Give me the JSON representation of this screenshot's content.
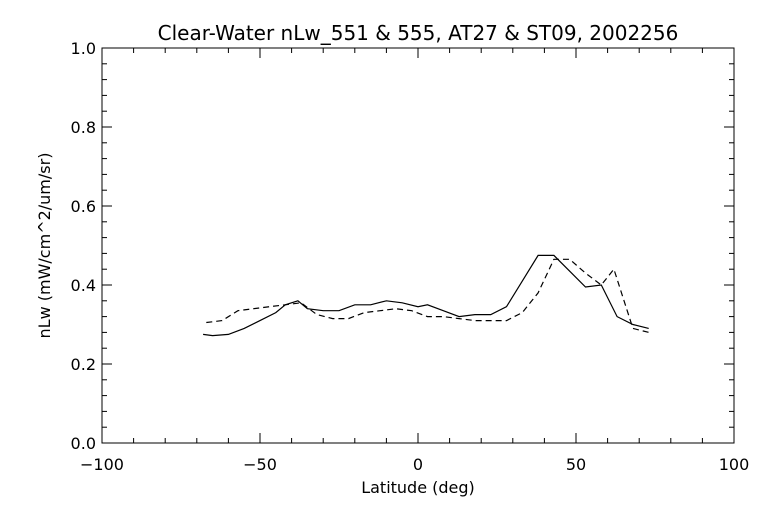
{
  "chart_data": {
    "type": "line",
    "title": "Clear-Water nLw_551 & 555, AT27 & ST09, 2002256",
    "xlabel": "Latitude (deg)",
    "ylabel": "nLw (mW/cm^2/um/sr)",
    "xlim": [
      -100,
      100
    ],
    "ylim": [
      0,
      1
    ],
    "xticks": [
      -100,
      -50,
      0,
      50,
      100
    ],
    "xtick_labels": [
      "−100",
      "−50",
      "0",
      "50",
      "100"
    ],
    "yticks": [
      0,
      0.2,
      0.4,
      0.6,
      0.8,
      1.0
    ],
    "ytick_labels": [
      "0.0",
      "0.2",
      "0.4",
      "0.6",
      "0.8",
      "1.0"
    ],
    "grid": false,
    "series": [
      {
        "style": "solid",
        "x": [
          -68,
          -65,
          -60,
          -55,
          -50,
          -45,
          -42,
          -38,
          -35,
          -30,
          -25,
          -20,
          -15,
          -10,
          -5,
          0,
          3,
          8,
          13,
          18,
          23,
          28,
          33,
          38,
          43,
          48,
          53,
          58,
          63,
          68,
          73
        ],
        "y": [
          0.275,
          0.272,
          0.275,
          0.29,
          0.31,
          0.33,
          0.35,
          0.36,
          0.34,
          0.335,
          0.335,
          0.35,
          0.35,
          0.36,
          0.355,
          0.345,
          0.35,
          0.335,
          0.32,
          0.325,
          0.325,
          0.345,
          0.41,
          0.475,
          0.475,
          0.435,
          0.395,
          0.4,
          0.32,
          0.3,
          0.29
        ]
      },
      {
        "style": "dashed",
        "x": [
          -67,
          -62,
          -57,
          -52,
          -47,
          -42,
          -37,
          -32,
          -27,
          -22,
          -17,
          -12,
          -7,
          -2,
          3,
          8,
          13,
          18,
          23,
          28,
          33,
          38,
          43,
          48,
          53,
          58,
          60,
          62,
          65,
          68,
          73
        ],
        "y": [
          0.305,
          0.31,
          0.335,
          0.34,
          0.345,
          0.35,
          0.355,
          0.325,
          0.315,
          0.315,
          0.33,
          0.335,
          0.34,
          0.335,
          0.32,
          0.32,
          0.315,
          0.31,
          0.31,
          0.31,
          0.33,
          0.38,
          0.465,
          0.465,
          0.43,
          0.4,
          0.42,
          0.44,
          0.365,
          0.29,
          0.28
        ]
      }
    ]
  }
}
